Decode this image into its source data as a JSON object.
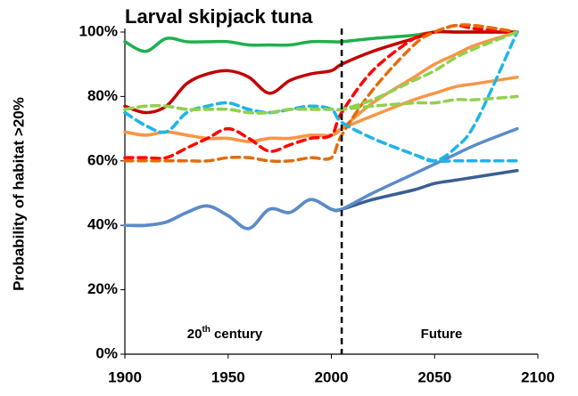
{
  "chart_data": {
    "type": "line",
    "title": "Larval skipjack tuna",
    "y_axis_label": "Probability of habitat >20%",
    "annotation_left": [
      "20",
      "th",
      " century"
    ],
    "annotation_right": "Future",
    "divider_x": 2005,
    "xlim": [
      1900,
      2100
    ],
    "xticks": [
      1900,
      1950,
      2000,
      2050,
      2100
    ],
    "ylim": [
      0,
      100
    ],
    "yticks": [
      {
        "value": 0,
        "label": "0%"
      },
      {
        "value": 20,
        "label": "20%"
      },
      {
        "value": 40,
        "label": "40%"
      },
      {
        "value": 60,
        "label": "60%"
      },
      {
        "value": 80,
        "label": "80%"
      },
      {
        "value": 100,
        "label": "100%"
      }
    ],
    "grid": false,
    "x": [
      1900,
      1910,
      1920,
      1930,
      1940,
      1950,
      1960,
      1970,
      1980,
      1990,
      2000,
      2005,
      2020,
      2040,
      2050,
      2060,
      2070,
      2090
    ],
    "series": [
      {
        "color": "#1fb04e",
        "dashed": false,
        "values": [
          97,
          94,
          98,
          97,
          97,
          97,
          96,
          96,
          96,
          97,
          97,
          97,
          98,
          99,
          100,
          100,
          100,
          100
        ]
      },
      {
        "color": "#c00000",
        "dashed": false,
        "values": [
          77,
          75,
          77,
          84,
          87,
          88,
          86,
          81,
          85,
          87,
          88,
          90,
          94,
          98,
          100,
          100,
          100,
          100
        ]
      },
      {
        "color": "#f79646",
        "dashed": false,
        "values": [
          69,
          68,
          69,
          68,
          67,
          67,
          66,
          67,
          67,
          68,
          68,
          70,
          74,
          79,
          81,
          83,
          84,
          86
        ]
      },
      {
        "color": "#f79646",
        "dashed": false,
        "values": [
          69,
          68,
          69,
          68,
          67,
          67,
          66,
          67,
          67,
          68,
          68,
          70,
          78,
          86,
          90,
          93,
          96,
          100
        ]
      },
      {
        "color": "#3a5f92",
        "dashed": false,
        "values": [
          40,
          40,
          41,
          44,
          46,
          43,
          39,
          45,
          44,
          48,
          45,
          45,
          48,
          51,
          53,
          54,
          55,
          57
        ]
      },
      {
        "color": "#5b8cc8",
        "dashed": false,
        "values": [
          40,
          40,
          41,
          44,
          46,
          43,
          39,
          45,
          44,
          48,
          45,
          45,
          50,
          56,
          59,
          62,
          65,
          70
        ]
      },
      {
        "color": "#ff0000",
        "dashed": true,
        "values": [
          61,
          61,
          61,
          64,
          67,
          70,
          67,
          63,
          65,
          67,
          68,
          75,
          88,
          98,
          100,
          102,
          101,
          100
        ]
      },
      {
        "color": "#e46c0a",
        "dashed": true,
        "values": [
          60,
          60,
          60,
          60,
          60,
          61,
          61,
          60,
          60,
          61,
          61,
          68,
          82,
          96,
          100,
          102,
          102,
          100
        ]
      },
      {
        "color": "#1fb5e8",
        "dashed": true,
        "values": [
          75,
          71,
          69,
          75,
          77,
          78,
          76,
          75,
          76,
          77,
          76,
          72,
          67,
          62,
          60,
          64,
          72,
          100
        ]
      },
      {
        "color": "#1fb5e8",
        "dashed": true,
        "values": [
          75,
          71,
          69,
          75,
          77,
          78,
          76,
          75,
          76,
          77,
          76,
          72,
          67,
          62,
          60,
          60,
          60,
          60
        ]
      },
      {
        "color": "#92d050",
        "dashed": true,
        "values": [
          76,
          77,
          77,
          76,
          76,
          76,
          75,
          75,
          76,
          76,
          76,
          76,
          77,
          78,
          78,
          79,
          79,
          80
        ]
      },
      {
        "color": "#92d050",
        "dashed": true,
        "values": [
          76,
          77,
          77,
          76,
          76,
          76,
          75,
          75,
          76,
          76,
          76,
          76,
          79,
          85,
          88,
          92,
          95,
          100
        ]
      }
    ]
  }
}
